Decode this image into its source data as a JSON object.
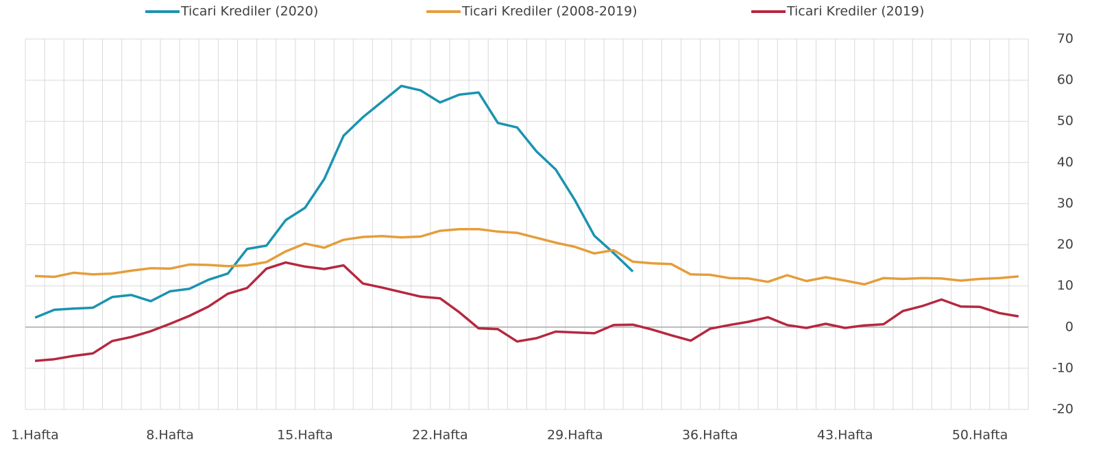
{
  "chart_data": {
    "type": "line",
    "categories": [
      "1.Hafta",
      null,
      null,
      null,
      null,
      null,
      null,
      "8.Hafta",
      null,
      null,
      null,
      null,
      null,
      null,
      "15.Hafta",
      null,
      null,
      null,
      null,
      null,
      null,
      "22.Hafta",
      null,
      null,
      null,
      null,
      null,
      null,
      "29.Hafta",
      null,
      null,
      null,
      null,
      null,
      null,
      "36.Hafta",
      null,
      null,
      null,
      null,
      null,
      null,
      "43.Hafta",
      null,
      null,
      null,
      null,
      null,
      null,
      "50.Hafta",
      null,
      null
    ],
    "series": [
      {
        "name": "Ticari Krediler (2020)",
        "color": "#1a93b0",
        "values": [
          2.3,
          4.2,
          4.5,
          4.7,
          7.3,
          7.8,
          6.3,
          8.7,
          9.3,
          11.5,
          13,
          19,
          19.8,
          26,
          29,
          36,
          46.5,
          51,
          54.8,
          58.6,
          57.5,
          54.6,
          56.5,
          57,
          49.6,
          48.5,
          42.7,
          38.3,
          30.8,
          22.2,
          18,
          13.5,
          null,
          null,
          null,
          null,
          null,
          null,
          null,
          null,
          null,
          null,
          null,
          null,
          null,
          null,
          null,
          null,
          null,
          null,
          null,
          null
        ]
      },
      {
        "name": "Ticari Krediler (2008-2019)",
        "color": "#e59d3a",
        "values": [
          12.4,
          12.2,
          13.2,
          12.8,
          13,
          13.7,
          14.3,
          14.2,
          15.2,
          15.1,
          14.8,
          15,
          15.8,
          18.4,
          20.3,
          19.3,
          21.2,
          21.9,
          22.1,
          21.8,
          22,
          23.4,
          23.8,
          23.8,
          23.2,
          22.9,
          21.7,
          20.5,
          19.5,
          17.9,
          18.7,
          15.9,
          15.5,
          15.3,
          12.8,
          12.7,
          11.9,
          11.8,
          11,
          12.6,
          11.2,
          12.1,
          11.3,
          10.4,
          11.9,
          11.7,
          11.9,
          11.8,
          11.3,
          11.7,
          11.9,
          12.3
        ]
      },
      {
        "name": "Ticari Krediler (2019)",
        "color": "#b5283f",
        "values": [
          -8.2,
          -7.8,
          -7,
          -6.4,
          -3.4,
          -2.4,
          -1,
          0.8,
          2.7,
          5,
          8.1,
          9.5,
          14.2,
          15.7,
          14.7,
          14.1,
          15,
          10.6,
          9.6,
          8.5,
          7.4,
          7,
          3.6,
          -0.3,
          -0.5,
          -3.5,
          -2.7,
          -1.1,
          -1.3,
          -1.5,
          0.5,
          0.6,
          -0.6,
          -2,
          -3.3,
          -0.4,
          0.5,
          1.3,
          2.4,
          0.5,
          -0.2,
          0.8,
          -0.2,
          0.4,
          0.7,
          3.9,
          5.1,
          6.7,
          5,
          4.9,
          3.4,
          2.6
        ]
      }
    ],
    "ylim": [
      -20,
      70
    ],
    "yticks": [
      -20,
      -10,
      0,
      10,
      20,
      30,
      40,
      50,
      60,
      70
    ],
    "grid": true,
    "legend": "top"
  }
}
